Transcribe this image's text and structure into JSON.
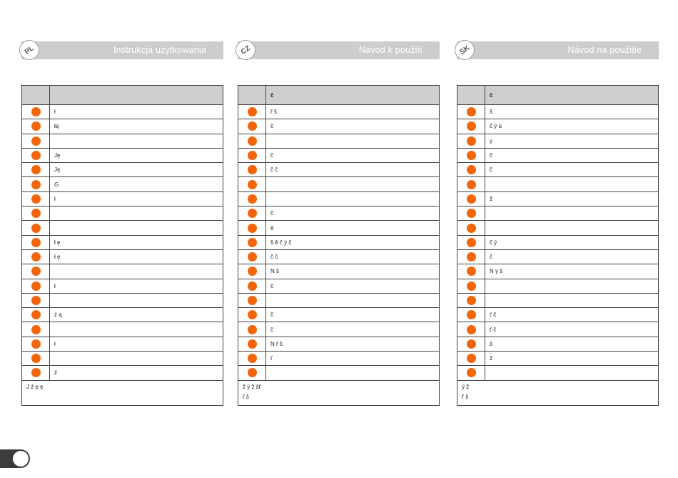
{
  "columns": [
    {
      "lang": "PL",
      "title": "Instrukcja użytkowania",
      "table_header": "",
      "rows": [
        "ł",
        "łą",
        "",
        "Ję",
        "Ję",
        "G",
        "ł",
        "",
        "",
        "ł ę",
        "ł ę",
        "",
        "ł",
        "",
        "ż ą",
        "",
        "ł",
        "",
        "ź"
      ],
      "note": [
        "J ź ę ę",
        ""
      ]
    },
    {
      "lang": "CZ",
      "title": "Návod k použití",
      "table_header": "č",
      "rows": [
        "ř š",
        "č",
        "",
        "č",
        "č č",
        "",
        "",
        "č",
        "ě",
        "š ě č ý č",
        "č č",
        "N š",
        "č",
        "",
        "č",
        "č",
        "N ř š",
        "ť",
        ""
      ],
      "note": [
        "ž ý ž šť",
        "ř š"
      ]
    },
    {
      "lang": "SK",
      "title": "Návod na použitie",
      "table_header": "č",
      "rows": [
        "š",
        "č ý ú",
        "ý",
        "č",
        "č",
        "",
        "ž",
        "",
        "",
        "č ý",
        "č",
        "N ý š",
        "",
        "",
        "ť č",
        "ť č",
        "š",
        "ž",
        ""
      ],
      "note": [
        "ý ž",
        "ť š"
      ]
    }
  ],
  "colors": {
    "accent": "#f2650b",
    "header_bg": "#cdcdcf"
  }
}
